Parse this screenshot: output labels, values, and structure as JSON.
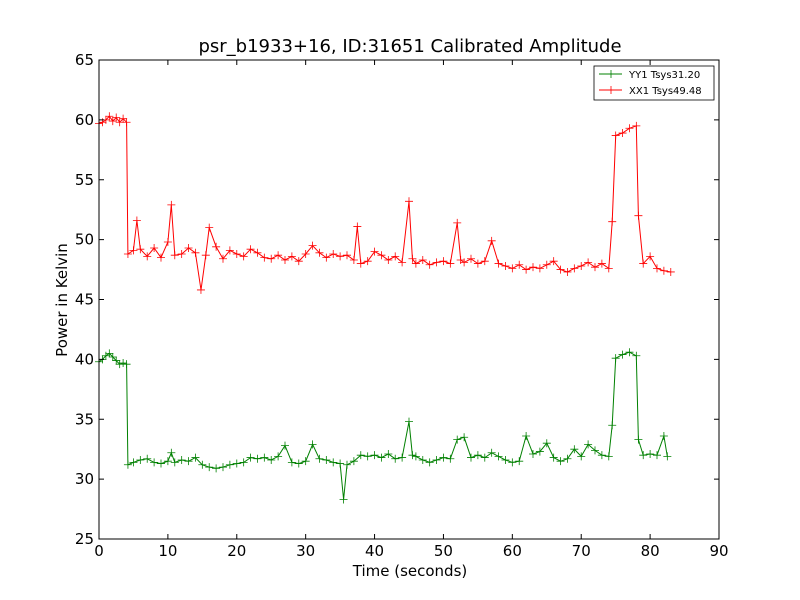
{
  "chart_data": {
    "type": "line",
    "title": "psr_b1933+16, ID:31651 Calibrated Amplitude",
    "xlabel": "Time (seconds)",
    "ylabel": "Power in Kelvin",
    "xlim": [
      0,
      90
    ],
    "ylim": [
      25,
      65
    ],
    "xticks": [
      0,
      10,
      20,
      30,
      40,
      50,
      60,
      70,
      80,
      90
    ],
    "yticks": [
      25,
      30,
      35,
      40,
      45,
      50,
      55,
      60,
      65
    ],
    "grid": false,
    "legend_position": "top-right",
    "marker": "+",
    "series": [
      {
        "name": "YY1 Tsys31.20",
        "color": "#008000",
        "points": [
          [
            0.0,
            39.8
          ],
          [
            0.5,
            40.0
          ],
          [
            1.0,
            40.3
          ],
          [
            1.5,
            40.5
          ],
          [
            2.0,
            40.2
          ],
          [
            2.5,
            39.9
          ],
          [
            3.0,
            39.6
          ],
          [
            3.5,
            39.7
          ],
          [
            4.0,
            39.6
          ],
          [
            4.2,
            31.2
          ],
          [
            5.0,
            31.4
          ],
          [
            6.0,
            31.6
          ],
          [
            7.0,
            31.7
          ],
          [
            8.0,
            31.4
          ],
          [
            9.0,
            31.3
          ],
          [
            10.0,
            31.5
          ],
          [
            10.5,
            32.2
          ],
          [
            11.0,
            31.4
          ],
          [
            12.0,
            31.6
          ],
          [
            13.0,
            31.5
          ],
          [
            14.0,
            31.8
          ],
          [
            15.0,
            31.2
          ],
          [
            16.0,
            31.0
          ],
          [
            17.0,
            30.9
          ],
          [
            18.0,
            31.0
          ],
          [
            19.0,
            31.2
          ],
          [
            20.0,
            31.3
          ],
          [
            21.0,
            31.4
          ],
          [
            22.0,
            31.8
          ],
          [
            23.0,
            31.7
          ],
          [
            24.0,
            31.8
          ],
          [
            25.0,
            31.6
          ],
          [
            26.0,
            31.9
          ],
          [
            27.0,
            32.8
          ],
          [
            28.0,
            31.4
          ],
          [
            29.0,
            31.3
          ],
          [
            30.0,
            31.5
          ],
          [
            31.0,
            32.9
          ],
          [
            32.0,
            31.7
          ],
          [
            33.0,
            31.6
          ],
          [
            34.0,
            31.4
          ],
          [
            35.0,
            31.3
          ],
          [
            35.5,
            28.3
          ],
          [
            36.0,
            31.2
          ],
          [
            37.0,
            31.5
          ],
          [
            38.0,
            32.0
          ],
          [
            39.0,
            31.9
          ],
          [
            40.0,
            32.0
          ],
          [
            41.0,
            31.8
          ],
          [
            42.0,
            32.1
          ],
          [
            43.0,
            31.7
          ],
          [
            44.0,
            31.8
          ],
          [
            45.0,
            34.8
          ],
          [
            45.5,
            32.0
          ],
          [
            46.0,
            31.9
          ],
          [
            47.0,
            31.6
          ],
          [
            48.0,
            31.4
          ],
          [
            49.0,
            31.6
          ],
          [
            50.0,
            31.8
          ],
          [
            51.0,
            31.7
          ],
          [
            52.0,
            33.3
          ],
          [
            53.0,
            33.5
          ],
          [
            54.0,
            31.8
          ],
          [
            55.0,
            32.0
          ],
          [
            56.0,
            31.8
          ],
          [
            57.0,
            32.2
          ],
          [
            58.0,
            31.9
          ],
          [
            59.0,
            31.6
          ],
          [
            60.0,
            31.4
          ],
          [
            61.0,
            31.5
          ],
          [
            62.0,
            33.6
          ],
          [
            63.0,
            32.1
          ],
          [
            64.0,
            32.3
          ],
          [
            65.0,
            33.0
          ],
          [
            66.0,
            31.8
          ],
          [
            67.0,
            31.5
          ],
          [
            68.0,
            31.7
          ],
          [
            69.0,
            32.5
          ],
          [
            70.0,
            31.9
          ],
          [
            71.0,
            32.9
          ],
          [
            72.0,
            32.4
          ],
          [
            73.0,
            32.0
          ],
          [
            74.0,
            31.9
          ],
          [
            74.5,
            34.5
          ],
          [
            75.0,
            40.1
          ],
          [
            76.0,
            40.4
          ],
          [
            77.0,
            40.6
          ],
          [
            78.0,
            40.3
          ],
          [
            78.3,
            33.3
          ],
          [
            79.0,
            32.0
          ],
          [
            80.0,
            32.1
          ],
          [
            81.0,
            32.0
          ],
          [
            82.0,
            33.6
          ],
          [
            82.5,
            31.9
          ]
        ]
      },
      {
        "name": "XX1 Tsys49.48",
        "color": "#ff0000",
        "points": [
          [
            0.0,
            59.7
          ],
          [
            0.5,
            59.8
          ],
          [
            1.0,
            60.0
          ],
          [
            1.5,
            60.3
          ],
          [
            2.0,
            59.9
          ],
          [
            2.5,
            60.2
          ],
          [
            3.0,
            59.8
          ],
          [
            3.5,
            60.1
          ],
          [
            4.0,
            59.8
          ],
          [
            4.2,
            48.8
          ],
          [
            5.0,
            49.1
          ],
          [
            5.5,
            51.6
          ],
          [
            6.0,
            49.2
          ],
          [
            7.0,
            48.6
          ],
          [
            8.0,
            49.3
          ],
          [
            9.0,
            48.5
          ],
          [
            10.0,
            49.8
          ],
          [
            10.5,
            52.9
          ],
          [
            11.0,
            48.7
          ],
          [
            12.0,
            48.8
          ],
          [
            13.0,
            49.3
          ],
          [
            14.0,
            48.9
          ],
          [
            14.8,
            45.8
          ],
          [
            15.5,
            48.7
          ],
          [
            16.0,
            51.0
          ],
          [
            17.0,
            49.4
          ],
          [
            18.0,
            48.4
          ],
          [
            19.0,
            49.1
          ],
          [
            20.0,
            48.8
          ],
          [
            21.0,
            48.6
          ],
          [
            22.0,
            49.2
          ],
          [
            23.0,
            48.9
          ],
          [
            24.0,
            48.5
          ],
          [
            25.0,
            48.4
          ],
          [
            26.0,
            48.7
          ],
          [
            27.0,
            48.3
          ],
          [
            28.0,
            48.6
          ],
          [
            29.0,
            48.2
          ],
          [
            30.0,
            48.8
          ],
          [
            31.0,
            49.5
          ],
          [
            32.0,
            48.9
          ],
          [
            33.0,
            48.5
          ],
          [
            34.0,
            48.8
          ],
          [
            35.0,
            48.6
          ],
          [
            36.0,
            48.7
          ],
          [
            37.0,
            48.3
          ],
          [
            37.5,
            51.1
          ],
          [
            38.0,
            48.0
          ],
          [
            39.0,
            48.2
          ],
          [
            40.0,
            49.0
          ],
          [
            41.0,
            48.7
          ],
          [
            42.0,
            48.3
          ],
          [
            43.0,
            48.6
          ],
          [
            44.0,
            48.1
          ],
          [
            45.0,
            53.2
          ],
          [
            45.5,
            48.4
          ],
          [
            46.0,
            48.0
          ],
          [
            47.0,
            48.3
          ],
          [
            48.0,
            47.9
          ],
          [
            49.0,
            48.1
          ],
          [
            50.0,
            48.2
          ],
          [
            51.0,
            48.0
          ],
          [
            52.0,
            51.4
          ],
          [
            52.5,
            48.3
          ],
          [
            53.0,
            48.1
          ],
          [
            54.0,
            48.4
          ],
          [
            55.0,
            48.0
          ],
          [
            56.0,
            48.2
          ],
          [
            57.0,
            49.9
          ],
          [
            58.0,
            48.0
          ],
          [
            59.0,
            47.8
          ],
          [
            60.0,
            47.6
          ],
          [
            61.0,
            47.9
          ],
          [
            62.0,
            47.5
          ],
          [
            63.0,
            47.7
          ],
          [
            64.0,
            47.6
          ],
          [
            65.0,
            47.9
          ],
          [
            66.0,
            48.2
          ],
          [
            67.0,
            47.5
          ],
          [
            68.0,
            47.3
          ],
          [
            69.0,
            47.6
          ],
          [
            70.0,
            47.8
          ],
          [
            71.0,
            48.1
          ],
          [
            72.0,
            47.7
          ],
          [
            73.0,
            48.0
          ],
          [
            74.0,
            47.6
          ],
          [
            74.5,
            51.5
          ],
          [
            75.0,
            58.7
          ],
          [
            76.0,
            58.9
          ],
          [
            77.0,
            59.3
          ],
          [
            78.0,
            59.5
          ],
          [
            78.3,
            52.0
          ],
          [
            79.0,
            48.0
          ],
          [
            80.0,
            48.6
          ],
          [
            81.0,
            47.6
          ],
          [
            82.0,
            47.4
          ],
          [
            83.0,
            47.3
          ]
        ]
      }
    ]
  }
}
